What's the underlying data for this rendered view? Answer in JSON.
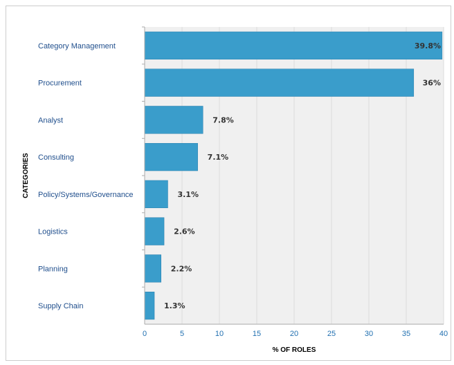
{
  "chart_data": {
    "type": "bar",
    "orientation": "horizontal",
    "title": "",
    "xlabel": "% OF ROLES",
    "ylabel": "CATEGORIES",
    "categories": [
      "Category Management",
      "Procurement",
      "Analyst",
      "Consulting",
      "Policy/Systems/Governance",
      "Logistics",
      "Planning",
      "Supply Chain"
    ],
    "values": [
      39.8,
      36,
      7.8,
      7.1,
      3.1,
      2.6,
      2.2,
      1.3
    ],
    "value_labels": [
      "39.8%",
      "36%",
      "7.8%",
      "7.1%",
      "3.1%",
      "2.6%",
      "2.2%",
      "1.3%"
    ],
    "xlim": [
      0,
      40
    ],
    "xticks": [
      0,
      5,
      10,
      15,
      20,
      25,
      30,
      35,
      40
    ],
    "grid": true,
    "legend": "none",
    "colors": {
      "bar": "#3a9dcb",
      "bar_border": "#2a7fae",
      "plot_bg": "#f0f0f0",
      "grid": "#dcdcdc",
      "axis": "#aaaaaa"
    }
  }
}
